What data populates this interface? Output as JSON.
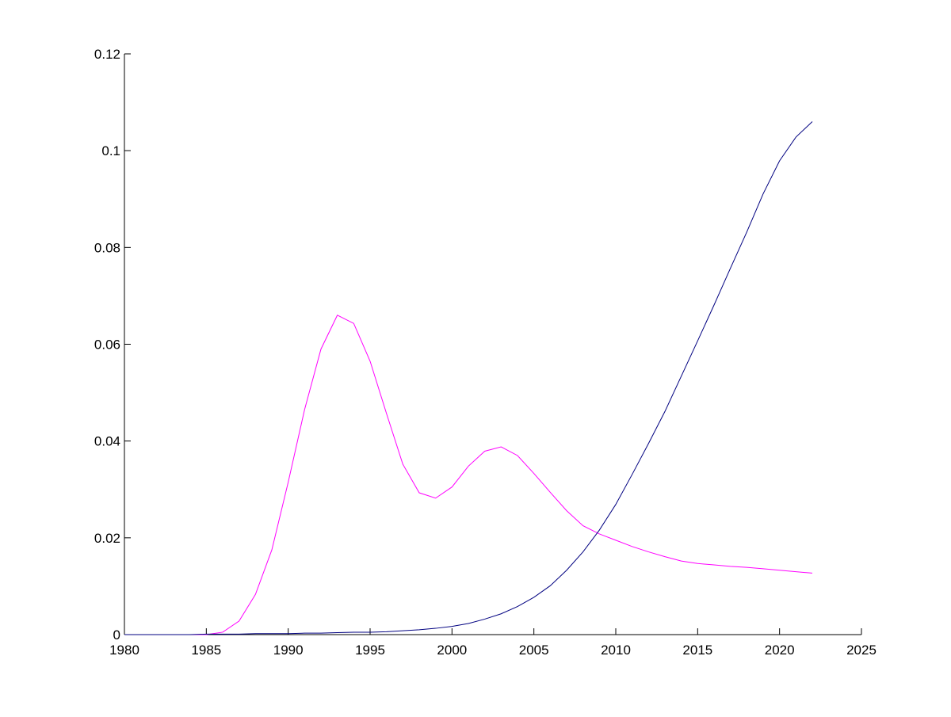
{
  "chart_data": {
    "type": "line",
    "title": "",
    "xlabel": "",
    "ylabel": "",
    "xlim": [
      1980,
      2025
    ],
    "ylim": [
      0,
      0.12
    ],
    "xticks": [
      "1980",
      "1985",
      "1990",
      "1995",
      "2000",
      "2005",
      "2010",
      "2015",
      "2020",
      "2025"
    ],
    "yticks": [
      "0",
      "0.02",
      "0.04",
      "0.06",
      "0.08",
      "0.1",
      "0.12"
    ],
    "grid": false,
    "legend": "none",
    "colors": {
      "series1": "#ff00ff",
      "series2": "#000080",
      "axes": "#000000"
    },
    "series": [
      {
        "color": "#ff00ff",
        "x": [
          1980,
          1981,
          1982,
          1983,
          1984,
          1985,
          1986,
          1987,
          1988,
          1989,
          1990,
          1991,
          1992,
          1993,
          1994,
          1995,
          1996,
          1997,
          1998,
          1999,
          2000,
          2001,
          2002,
          2003,
          2004,
          2005,
          2006,
          2007,
          2008,
          2009,
          2010,
          2011,
          2012,
          2013,
          2014,
          2015,
          2016,
          2017,
          2018,
          2019,
          2020,
          2021,
          2022
        ],
        "values": [
          0,
          0,
          0,
          0,
          0,
          0,
          0.0005,
          0.0028,
          0.0083,
          0.0175,
          0.0315,
          0.0465,
          0.059,
          0.066,
          0.0643,
          0.0565,
          0.0457,
          0.0352,
          0.0293,
          0.0282,
          0.0305,
          0.0348,
          0.0379,
          0.0388,
          0.037,
          0.0333,
          0.0294,
          0.0256,
          0.0225,
          0.0208,
          0.0195,
          0.0182,
          0.0171,
          0.0161,
          0.0152,
          0.0147,
          0.0144,
          0.0141,
          0.0139,
          0.0136,
          0.0133,
          0.013,
          0.0127
        ]
      },
      {
        "color": "#000080",
        "x": [
          1980,
          1981,
          1982,
          1983,
          1984,
          1985,
          1986,
          1987,
          1988,
          1989,
          1990,
          1991,
          1992,
          1993,
          1994,
          1995,
          1996,
          1997,
          1998,
          1999,
          2000,
          2001,
          2002,
          2003,
          2004,
          2005,
          2006,
          2007,
          2008,
          2009,
          2010,
          2011,
          2012,
          2013,
          2014,
          2015,
          2016,
          2017,
          2018,
          2019,
          2020,
          2021,
          2022
        ],
        "values": [
          0,
          0,
          0,
          0,
          0,
          0.0001,
          0.0001,
          0.0001,
          0.0002,
          0.0002,
          0.0002,
          0.0003,
          0.0003,
          0.0004,
          0.0005,
          0.0005,
          0.0006,
          0.0008,
          0.001,
          0.0013,
          0.0017,
          0.0023,
          0.0032,
          0.0043,
          0.0058,
          0.0077,
          0.0101,
          0.0133,
          0.0171,
          0.0216,
          0.0269,
          0.0331,
          0.0395,
          0.0461,
          0.0534,
          0.0607,
          0.0681,
          0.0757,
          0.0832,
          0.0911,
          0.0979,
          0.1028,
          0.106
        ]
      }
    ]
  }
}
